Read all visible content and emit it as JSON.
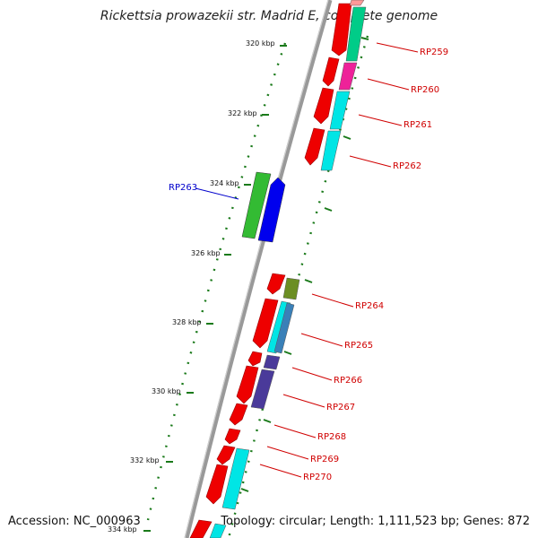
{
  "title": "Rickettsia prowazekii str. Madrid E, complete genome",
  "footer": {
    "accession": "Accession: NC_000963",
    "summary": "Topology: circular; Length: 1,111,523 bp; Genes: 872"
  },
  "colors": {
    "backbone": "#888888",
    "tick": "#1a7a1a",
    "tick_label": "#111111",
    "forward_gene_label": "#d00000",
    "reverse_gene_label": "#0000cc",
    "gene_red": "#ee0000",
    "cds_cyan": "#00e5e5",
    "cds_teal": "#00cc88",
    "cds_magenta": "#ee2299",
    "cds_green": "#33bb33",
    "cds_blue": "#0000ee",
    "cds_olive": "#6b8e23",
    "cds_steel": "#3a80b8",
    "cds_slate": "#4a3a9a"
  },
  "ticks": [
    "320 kbp",
    "322 kbp",
    "324 kbp",
    "326 kbp",
    "328 kbp",
    "330 kbp",
    "332 kbp",
    "334 kbp"
  ],
  "gene_labels": {
    "forward": [
      "RP259",
      "RP260",
      "RP261",
      "RP262",
      "RP264",
      "RP265",
      "RP266",
      "RP267",
      "RP268",
      "RP269",
      "RP270"
    ],
    "reverse": [
      "RP263"
    ]
  }
}
